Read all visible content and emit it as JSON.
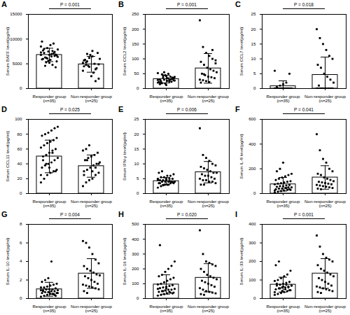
{
  "chart_data": [
    {
      "type": "bar",
      "title": "A",
      "annotation": "P = 0.001",
      "ylabel": "Serum BAFF level(pg/ml)",
      "categories": [
        "Responder group\n(n=35)",
        "Non-responder group\n(n=25)"
      ],
      "values": [
        6800,
        4900
      ],
      "errors": [
        1350,
        1600
      ],
      "color": "#ffffff",
      "points": [
        {
          "marker": "circle",
          "values": [
            6800,
            7200,
            8200,
            8800,
            9100,
            5500,
            5900,
            6300,
            7500,
            7000,
            6600,
            6400,
            7700,
            6200,
            5200,
            4800,
            6900,
            7300,
            8000,
            6100,
            5800,
            7100,
            6700,
            9500,
            4600,
            5600,
            6500,
            7400,
            7900,
            6000,
            5300,
            6800,
            7600,
            4300,
            8500
          ]
        },
        {
          "marker": "square",
          "values": [
            5200,
            4800,
            6200,
            7600,
            3900,
            2000,
            4500,
            5500,
            6800,
            3200,
            4100,
            6000,
            5800,
            4600,
            2500,
            5000,
            7200,
            3600,
            5300,
            4400,
            6500,
            1500,
            4900,
            5700,
            7000
          ]
        }
      ],
      "ylim": [
        0,
        15000
      ],
      "yticks": [
        0,
        5000,
        10000,
        15000
      ]
    },
    {
      "type": "bar",
      "title": "B",
      "annotation": "P = 0.001",
      "ylabel": "Serum CCL2 level(pg/ml)",
      "categories": [
        "Responder group\n(n=35)",
        "Non-responder group\n(n=25)"
      ],
      "values": [
        32,
        68
      ],
      "errors": [
        13,
        50
      ],
      "color": "#ffffff",
      "points": [
        {
          "marker": "circle",
          "values": [
            20,
            25,
            30,
            35,
            40,
            28,
            22,
            18,
            45,
            50,
            32,
            27,
            15,
            38,
            42,
            24,
            33,
            29,
            19,
            55,
            26,
            31,
            36,
            21,
            48,
            17,
            34,
            23,
            39,
            30,
            44,
            12,
            28,
            37,
            52
          ]
        },
        {
          "marker": "square",
          "values": [
            230,
            140,
            120,
            110,
            100,
            95,
            90,
            80,
            70,
            65,
            60,
            55,
            50,
            45,
            40,
            38,
            35,
            30,
            28,
            25,
            22,
            130,
            85,
            20,
            48
          ]
        }
      ],
      "ylim": [
        0,
        250
      ],
      "yticks": [
        0,
        50,
        100,
        150,
        200,
        250
      ]
    },
    {
      "type": "bar",
      "title": "C",
      "annotation": "P = 0.018",
      "ylabel": "Serum CCL7 level(pg/ml)",
      "categories": [
        "Responder group\n(n=35)",
        "Non-responder group\n(n=25)"
      ],
      "values": [
        0.8,
        4.6
      ],
      "errors": [
        1.8,
        6
      ],
      "color": "#ffffff",
      "points": [
        {
          "marker": "circle",
          "values": [
            0,
            0,
            0,
            0,
            0,
            0,
            0,
            0,
            0,
            0,
            0,
            0,
            0,
            0,
            0,
            0,
            0,
            0,
            0,
            0,
            0,
            0,
            0,
            0,
            0,
            0,
            0,
            0,
            0,
            0.5,
            1,
            1.5,
            2,
            5,
            6
          ]
        },
        {
          "marker": "square",
          "values": [
            20,
            17,
            15,
            13,
            11,
            10,
            8,
            7,
            5,
            4,
            3,
            2,
            1,
            0,
            0,
            0,
            0,
            0,
            0,
            0,
            0,
            0,
            0,
            0,
            0
          ]
        }
      ],
      "ylim": [
        0,
        25
      ],
      "yticks": [
        0,
        5,
        10,
        15,
        20,
        25
      ]
    },
    {
      "type": "bar",
      "title": "D",
      "annotation": "P = 0.025",
      "ylabel": "Serum CCL11 level(pg/ml)",
      "categories": [
        "Responder group\n(n=35)",
        "Non-responder group\n(n=25)"
      ],
      "values": [
        50,
        37
      ],
      "errors": [
        22,
        15
      ],
      "color": "#ffffff",
      "points": [
        {
          "marker": "circle",
          "values": [
            15,
            20,
            25,
            28,
            30,
            32,
            35,
            38,
            40,
            42,
            45,
            48,
            50,
            52,
            55,
            58,
            60,
            62,
            65,
            68,
            70,
            72,
            75,
            78,
            80,
            82,
            85,
            88,
            90,
            45,
            40,
            35,
            55,
            30,
            25
          ]
        },
        {
          "marker": "square",
          "values": [
            10,
            15,
            18,
            20,
            25,
            28,
            30,
            32,
            35,
            38,
            40,
            42,
            45,
            48,
            50,
            52,
            55,
            58,
            60,
            65,
            30,
            35,
            40,
            25,
            45
          ]
        }
      ],
      "ylim": [
        0,
        100
      ],
      "yticks": [
        0,
        20,
        40,
        60,
        80,
        100
      ]
    },
    {
      "type": "bar",
      "title": "E",
      "annotation": "P = 0.006",
      "ylabel": "Serum IFN-γ level(pg/ml)",
      "categories": [
        "Responder group\n(n=35)",
        "Non-responder group\n(n=25)"
      ],
      "values": [
        4.2,
        7.2
      ],
      "errors": [
        1.2,
        3.6
      ],
      "color": "#ffffff",
      "points": [
        {
          "marker": "circle",
          "values": [
            2,
            2.5,
            3,
            3,
            3.5,
            3.5,
            3.5,
            4,
            4,
            4,
            4,
            4,
            4.5,
            4.5,
            4.5,
            5,
            5,
            5,
            5.5,
            5.5,
            6,
            6,
            6.5,
            7,
            7.5,
            3,
            3,
            4,
            4,
            3.5,
            2.8,
            5,
            4.2,
            3.8,
            4.6
          ]
        },
        {
          "marker": "square",
          "values": [
            22,
            13,
            12,
            11,
            10,
            9.5,
            9,
            8.5,
            8,
            7.5,
            7,
            7,
            6.5,
            6,
            6,
            5.5,
            5,
            5,
            4.5,
            4.5,
            4,
            4,
            3.5,
            3,
            3
          ]
        }
      ],
      "ylim": [
        0,
        25
      ],
      "yticks": [
        0,
        5,
        10,
        15,
        20,
        25
      ]
    },
    {
      "type": "bar",
      "title": "F",
      "annotation": "P = 0.041",
      "ylabel": "Serum IL-8 level(pg/ml)",
      "categories": [
        "Responder group\n(n=35)",
        "Non-responder group\n(n=25)"
      ],
      "values": [
        75,
        130
      ],
      "errors": [
        55,
        95
      ],
      "color": "#ffffff",
      "points": [
        {
          "marker": "circle",
          "values": [
            10,
            15,
            20,
            25,
            30,
            30,
            35,
            40,
            40,
            45,
            50,
            50,
            55,
            60,
            60,
            65,
            70,
            75,
            80,
            85,
            90,
            95,
            100,
            110,
            120,
            130,
            140,
            150,
            160,
            180,
            200,
            250,
            45,
            35,
            25
          ]
        },
        {
          "marker": "square",
          "values": [
            480,
            350,
            280,
            250,
            200,
            180,
            160,
            150,
            130,
            120,
            110,
            100,
            95,
            90,
            85,
            80,
            75,
            70,
            65,
            60,
            55,
            50,
            45,
            40,
            35
          ]
        }
      ],
      "ylim": [
        0,
        600
      ],
      "yticks": [
        0,
        200,
        400,
        600
      ]
    },
    {
      "type": "bar",
      "title": "G",
      "annotation": "P = 0.004",
      "ylabel": "Serum IL-10 level(pg/ml)",
      "categories": [
        "Responder group\n(n=35)",
        "Non-responder group\n(n=25)"
      ],
      "values": [
        1.0,
        2.7
      ],
      "errors": [
        0.75,
        1.6
      ],
      "color": "#ffffff",
      "points": [
        {
          "marker": "circle",
          "values": [
            0.2,
            0.3,
            0.4,
            0.5,
            0.5,
            0.6,
            0.6,
            0.7,
            0.7,
            0.8,
            0.8,
            0.9,
            0.9,
            1,
            1,
            1,
            1.1,
            1.2,
            1.2,
            1.3,
            1.4,
            1.5,
            1.6,
            1.8,
            2,
            2.2,
            4,
            0.4,
            0.6,
            0.8,
            1,
            0.7,
            0.5,
            0.3,
            0.9
          ]
        },
        {
          "marker": "square",
          "values": [
            6.2,
            6,
            5.5,
            4.8,
            4.2,
            3.8,
            3.5,
            3.2,
            3,
            2.8,
            2.6,
            2.5,
            2.4,
            2.2,
            2,
            1.8,
            1.6,
            1.5,
            1.4,
            1.3,
            1.2,
            1.1,
            1,
            0.8,
            0.6
          ]
        }
      ],
      "ylim": [
        0,
        8
      ],
      "yticks": [
        0,
        2,
        4,
        6,
        8
      ]
    },
    {
      "type": "bar",
      "title": "H",
      "annotation": "P = 0.020",
      "ylabel": "Serum IL-16 level(pg/ml)",
      "categories": [
        "Responder group\n(n=35)",
        "Non-responder group\n(n=25)"
      ],
      "values": [
        95,
        140
      ],
      "errors": [
        65,
        95
      ],
      "color": "#ffffff",
      "points": [
        {
          "marker": "circle",
          "values": [
            20,
            25,
            30,
            35,
            40,
            40,
            45,
            50,
            55,
            60,
            60,
            65,
            70,
            75,
            80,
            85,
            90,
            95,
            100,
            110,
            120,
            130,
            140,
            150,
            160,
            180,
            200,
            220,
            250,
            360,
            50,
            70,
            45,
            35,
            65
          ]
        },
        {
          "marker": "square",
          "values": [
            460,
            300,
            250,
            240,
            230,
            220,
            200,
            180,
            160,
            150,
            140,
            130,
            120,
            110,
            100,
            90,
            80,
            70,
            60,
            50,
            45,
            40,
            35,
            30,
            25
          ]
        }
      ],
      "ylim": [
        0,
        500
      ],
      "yticks": [
        0,
        100,
        200,
        300,
        400,
        500
      ]
    },
    {
      "type": "bar",
      "title": "I",
      "annotation": "P = 0.001",
      "ylabel": "Serum IL-33 level(pg/ml)",
      "categories": [
        "Responder group\n(n=35)",
        "Non-responder group\n(n=25)"
      ],
      "values": [
        75,
        135
      ],
      "errors": [
        40,
        80
      ],
      "color": "#ffffff",
      "points": [
        {
          "marker": "circle",
          "values": [
            20,
            25,
            30,
            35,
            40,
            45,
            50,
            55,
            60,
            60,
            65,
            70,
            70,
            75,
            80,
            85,
            90,
            95,
            100,
            110,
            120,
            130,
            150,
            180,
            200,
            40,
            50,
            60,
            70,
            80,
            55,
            65,
            75,
            45,
            35
          ]
        },
        {
          "marker": "square",
          "values": [
            340,
            280,
            240,
            220,
            210,
            200,
            180,
            160,
            150,
            140,
            130,
            120,
            110,
            100,
            90,
            80,
            70,
            65,
            60,
            55,
            50,
            45,
            40,
            35,
            30
          ]
        }
      ],
      "ylim": [
        0,
        400
      ],
      "yticks": [
        0,
        100,
        200,
        300,
        400
      ]
    }
  ]
}
